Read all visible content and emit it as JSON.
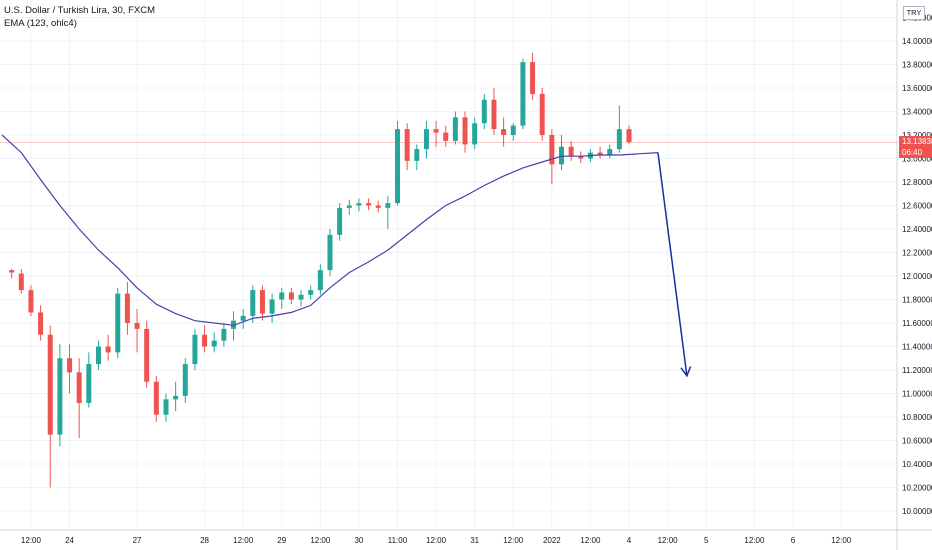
{
  "legend": {
    "symbol": "U.S. Dollar / Turkish Lira, 30, FXCM",
    "indicator": "EMA (123, ohlc4)"
  },
  "currency_button": "TRY",
  "current_price": {
    "value": "13.13838",
    "countdown": "06:40",
    "price": 13.13838
  },
  "colors": {
    "up": "#26a69a",
    "down": "#ef5350",
    "ema": "#4a3fa8",
    "arrow": "#1a2ea3",
    "grid": "#f0f3fa",
    "price_line": "#ef5350"
  },
  "chart_data": {
    "type": "candlestick",
    "title": "U.S. Dollar / Turkish Lira, 30, FXCM",
    "y_ticks": [
      "14.20000",
      "14.00000",
      "13.80000",
      "13.60000",
      "13.40000",
      "13.20000",
      "13.00000",
      "12.80000",
      "12.60000",
      "12.40000",
      "12.20000",
      "12.00000",
      "11.80000",
      "11.60000",
      "11.40000",
      "11.20000",
      "11.00000",
      "10.80000",
      "10.60000",
      "10.40000",
      "10.20000",
      "10.00000"
    ],
    "y_tick_values": [
      14.2,
      14.0,
      13.8,
      13.6,
      13.4,
      13.2,
      13.0,
      12.8,
      12.6,
      12.4,
      12.2,
      12.0,
      11.8,
      11.6,
      11.4,
      11.2,
      11.0,
      10.8,
      10.6,
      10.4,
      10.2,
      10.0
    ],
    "ylim": [
      9.9,
      14.3
    ],
    "x_ticks": [
      "12:00",
      "24",
      "27",
      "28",
      "12:00",
      "29",
      "12:00",
      "30",
      "11:00",
      "12:00",
      "31",
      "12:00",
      "2022",
      "12:00",
      "4",
      "12:00",
      "5",
      "12:00",
      "6",
      "12:00"
    ],
    "x_tick_index": [
      2,
      6,
      13,
      20,
      24,
      28,
      32,
      36,
      40,
      44,
      48,
      52,
      56,
      60,
      64,
      68,
      72,
      77,
      81,
      86
    ],
    "x_index_range": [
      -1,
      89.5
    ],
    "ema_label": "EMA (123, ohlc4)",
    "ema": [
      [
        -1,
        13.2
      ],
      [
        1,
        13.05
      ],
      [
        3,
        12.82
      ],
      [
        5,
        12.6
      ],
      [
        7,
        12.4
      ],
      [
        9,
        12.22
      ],
      [
        11,
        12.07
      ],
      [
        13,
        11.9
      ],
      [
        15,
        11.76
      ],
      [
        17,
        11.68
      ],
      [
        19,
        11.62
      ],
      [
        21,
        11.6
      ],
      [
        23,
        11.58
      ],
      [
        25,
        11.64
      ],
      [
        27,
        11.66
      ],
      [
        29,
        11.69
      ],
      [
        31,
        11.75
      ],
      [
        33,
        11.9
      ],
      [
        35,
        12.03
      ],
      [
        37,
        12.12
      ],
      [
        39,
        12.22
      ],
      [
        41,
        12.35
      ],
      [
        43,
        12.48
      ],
      [
        45,
        12.6
      ],
      [
        47,
        12.68
      ],
      [
        49,
        12.77
      ],
      [
        51,
        12.85
      ],
      [
        53,
        12.92
      ],
      [
        55,
        12.97
      ],
      [
        57,
        13.02
      ],
      [
        59,
        13.02
      ],
      [
        61,
        13.03
      ],
      [
        63,
        13.03
      ],
      [
        65,
        13.04
      ],
      [
        67,
        13.05
      ]
    ],
    "candles": [
      [
        12.05,
        12.06,
        11.98,
        12.03
      ],
      [
        12.02,
        12.06,
        11.85,
        11.88
      ],
      [
        11.88,
        11.92,
        11.66,
        11.69
      ],
      [
        11.69,
        11.75,
        11.45,
        11.5
      ],
      [
        11.5,
        11.58,
        10.2,
        10.65
      ],
      [
        10.65,
        11.42,
        10.55,
        11.3
      ],
      [
        11.3,
        11.42,
        11.0,
        11.18
      ],
      [
        11.18,
        11.3,
        10.62,
        10.92
      ],
      [
        10.92,
        11.35,
        10.88,
        11.25
      ],
      [
        11.25,
        11.45,
        11.2,
        11.4
      ],
      [
        11.4,
        11.5,
        11.28,
        11.35
      ],
      [
        11.35,
        11.9,
        11.3,
        11.85
      ],
      [
        11.85,
        11.95,
        11.5,
        11.6
      ],
      [
        11.6,
        11.72,
        11.35,
        11.55
      ],
      [
        11.55,
        11.62,
        11.05,
        11.1
      ],
      [
        11.1,
        11.15,
        10.76,
        10.82
      ],
      [
        10.82,
        11.0,
        10.76,
        10.95
      ],
      [
        10.95,
        11.1,
        10.85,
        10.98
      ],
      [
        10.98,
        11.3,
        10.92,
        11.25
      ],
      [
        11.25,
        11.55,
        11.2,
        11.5
      ],
      [
        11.5,
        11.58,
        11.35,
        11.4
      ],
      [
        11.4,
        11.52,
        11.35,
        11.45
      ],
      [
        11.45,
        11.6,
        11.4,
        11.55
      ],
      [
        11.55,
        11.7,
        11.45,
        11.62
      ],
      [
        11.62,
        11.72,
        11.55,
        11.66
      ],
      [
        11.66,
        11.92,
        11.6,
        11.88
      ],
      [
        11.88,
        11.92,
        11.62,
        11.68
      ],
      [
        11.68,
        11.85,
        11.6,
        11.8
      ],
      [
        11.8,
        11.9,
        11.72,
        11.86
      ],
      [
        11.86,
        11.9,
        11.76,
        11.8
      ],
      [
        11.8,
        11.88,
        11.74,
        11.84
      ],
      [
        11.84,
        11.92,
        11.8,
        11.88
      ],
      [
        11.88,
        12.1,
        11.84,
        12.05
      ],
      [
        12.05,
        12.4,
        12.0,
        12.35
      ],
      [
        12.35,
        12.62,
        12.3,
        12.58
      ],
      [
        12.58,
        12.65,
        12.52,
        12.6
      ],
      [
        12.6,
        12.66,
        12.55,
        12.62
      ],
      [
        12.62,
        12.66,
        12.56,
        12.6
      ],
      [
        12.6,
        12.64,
        12.54,
        12.58
      ],
      [
        12.58,
        12.68,
        12.4,
        12.62
      ],
      [
        12.62,
        13.32,
        12.6,
        13.25
      ],
      [
        13.25,
        13.3,
        12.9,
        12.98
      ],
      [
        12.98,
        13.12,
        12.9,
        13.08
      ],
      [
        13.08,
        13.32,
        13.0,
        13.25
      ],
      [
        13.25,
        13.32,
        13.1,
        13.22
      ],
      [
        13.22,
        13.28,
        13.1,
        13.15
      ],
      [
        13.15,
        13.4,
        13.12,
        13.35
      ],
      [
        13.35,
        13.4,
        13.05,
        13.12
      ],
      [
        13.12,
        13.35,
        13.08,
        13.3
      ],
      [
        13.3,
        13.55,
        13.25,
        13.5
      ],
      [
        13.5,
        13.6,
        13.2,
        13.25
      ],
      [
        13.25,
        13.35,
        13.1,
        13.2
      ],
      [
        13.2,
        13.3,
        13.15,
        13.28
      ],
      [
        13.28,
        13.85,
        13.25,
        13.82
      ],
      [
        13.82,
        13.9,
        13.5,
        13.55
      ],
      [
        13.55,
        13.6,
        13.15,
        13.2
      ],
      [
        13.2,
        13.25,
        12.78,
        12.95
      ],
      [
        12.95,
        13.2,
        12.9,
        13.1
      ],
      [
        13.1,
        13.15,
        12.98,
        13.02
      ],
      [
        13.02,
        13.06,
        12.96,
        13.0
      ],
      [
        13.0,
        13.08,
        12.97,
        13.05
      ],
      [
        13.05,
        13.1,
        13.0,
        13.03
      ],
      [
        13.03,
        13.12,
        13.0,
        13.08
      ],
      [
        13.08,
        13.45,
        13.05,
        13.25
      ],
      [
        13.25,
        13.28,
        13.12,
        13.14
      ]
    ],
    "candle_x_start": 0,
    "candle_x_step": 1,
    "arrow": {
      "from": [
        67,
        13.05
      ],
      "to": [
        70,
        11.15
      ]
    }
  }
}
